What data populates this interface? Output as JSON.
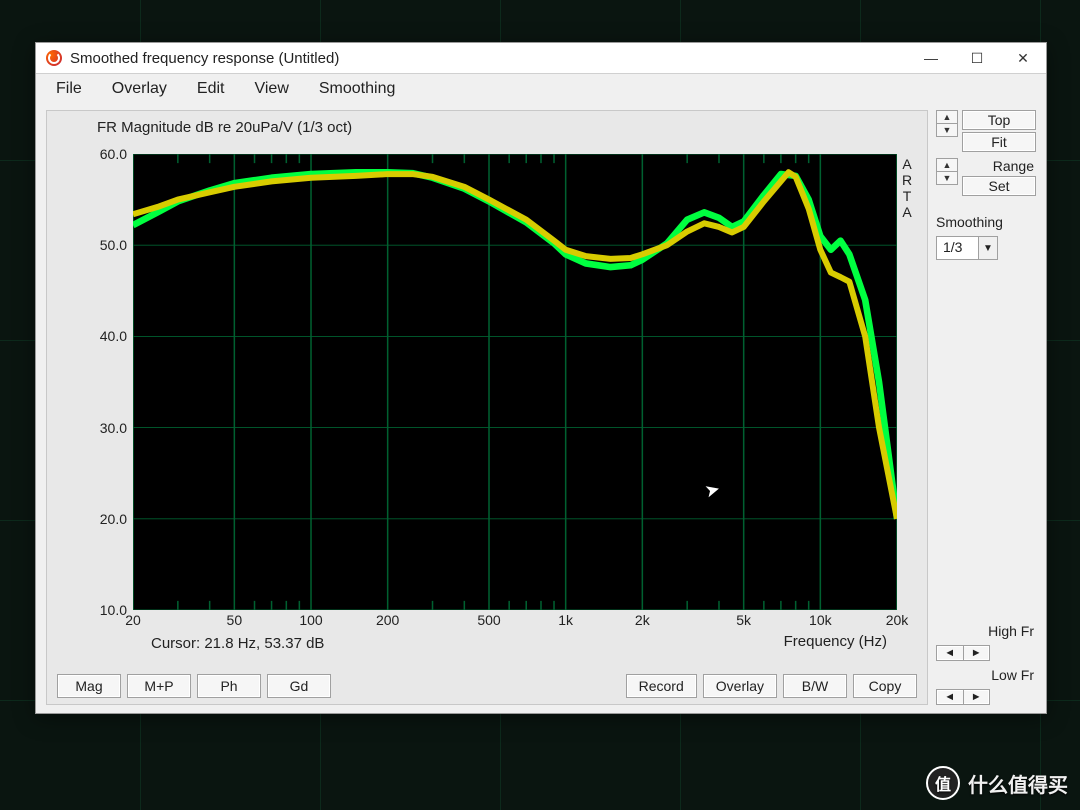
{
  "window": {
    "title": "Smoothed frequency response (Untitled)"
  },
  "menu": [
    "File",
    "Overlay",
    "Edit",
    "View",
    "Smoothing"
  ],
  "chart": {
    "title": "FR Magnitude dB re 20uPa/V (1/3 oct)",
    "xlabel": "Frequency (Hz)",
    "arta_label": "ARTA",
    "background_color": "#000000",
    "grid_color": "#006030",
    "ylim": [
      10,
      60
    ],
    "yticks": [
      10.0,
      20.0,
      30.0,
      40.0,
      50.0,
      60.0
    ],
    "ytick_labels": [
      "10.0",
      "20.0",
      "30.0",
      "40.0",
      "50.0",
      "60.0"
    ],
    "x_scale": "log",
    "xlim": [
      20,
      20000
    ],
    "xticks": [
      20,
      50,
      100,
      200,
      500,
      1000,
      2000,
      5000,
      10000,
      20000
    ],
    "xtick_labels": [
      "20",
      "50",
      "100",
      "200",
      "500",
      "1k",
      "2k",
      "5k",
      "10k",
      "20k"
    ],
    "minor_xticks": [
      30,
      40,
      60,
      70,
      80,
      90,
      300,
      400,
      600,
      700,
      800,
      900,
      3000,
      4000,
      6000,
      7000,
      8000,
      9000
    ],
    "series": [
      {
        "name": "green",
        "color": "#00ff40",
        "width": 2.2,
        "points": [
          [
            20,
            52.2
          ],
          [
            25,
            53.6
          ],
          [
            30,
            54.8
          ],
          [
            40,
            56.0
          ],
          [
            50,
            56.8
          ],
          [
            70,
            57.4
          ],
          [
            100,
            57.8
          ],
          [
            150,
            58.0
          ],
          [
            200,
            58.0
          ],
          [
            250,
            57.9
          ],
          [
            300,
            57.4
          ],
          [
            400,
            56.2
          ],
          [
            500,
            54.8
          ],
          [
            700,
            52.5
          ],
          [
            900,
            50.2
          ],
          [
            1000,
            49.0
          ],
          [
            1200,
            48.0
          ],
          [
            1500,
            47.6
          ],
          [
            1800,
            47.8
          ],
          [
            2000,
            48.4
          ],
          [
            2500,
            50.2
          ],
          [
            3000,
            52.8
          ],
          [
            3500,
            53.6
          ],
          [
            4000,
            53.0
          ],
          [
            4500,
            52.0
          ],
          [
            5000,
            52.6
          ],
          [
            6000,
            55.5
          ],
          [
            7000,
            57.8
          ],
          [
            8000,
            57.6
          ],
          [
            9000,
            55.0
          ],
          [
            10000,
            51.0
          ],
          [
            11000,
            49.5
          ],
          [
            12000,
            50.5
          ],
          [
            13000,
            49.0
          ],
          [
            15000,
            44.0
          ],
          [
            17000,
            35.0
          ],
          [
            20000,
            20.0
          ]
        ]
      },
      {
        "name": "yellow",
        "color": "#d8cc00",
        "width": 2.0,
        "points": [
          [
            20,
            53.4
          ],
          [
            25,
            54.2
          ],
          [
            30,
            55.0
          ],
          [
            40,
            55.8
          ],
          [
            50,
            56.4
          ],
          [
            70,
            57.0
          ],
          [
            100,
            57.4
          ],
          [
            150,
            57.6
          ],
          [
            200,
            57.8
          ],
          [
            250,
            57.8
          ],
          [
            300,
            57.5
          ],
          [
            400,
            56.4
          ],
          [
            500,
            55.0
          ],
          [
            700,
            52.8
          ],
          [
            900,
            50.5
          ],
          [
            1000,
            49.5
          ],
          [
            1200,
            48.8
          ],
          [
            1500,
            48.5
          ],
          [
            1800,
            48.6
          ],
          [
            2000,
            49.0
          ],
          [
            2500,
            50.0
          ],
          [
            3000,
            51.5
          ],
          [
            3500,
            52.4
          ],
          [
            4000,
            52.0
          ],
          [
            4500,
            51.4
          ],
          [
            5000,
            52.0
          ],
          [
            6000,
            54.8
          ],
          [
            7000,
            57.0
          ],
          [
            7500,
            58.0
          ],
          [
            8000,
            57.5
          ],
          [
            9000,
            54.0
          ],
          [
            10000,
            49.5
          ],
          [
            11000,
            47.0
          ],
          [
            12000,
            46.5
          ],
          [
            13000,
            46.0
          ],
          [
            15000,
            40.0
          ],
          [
            17000,
            30.0
          ],
          [
            20000,
            20.0
          ]
        ]
      }
    ],
    "cursor_text": "Cursor: 21.8 Hz, 53.37 dB"
  },
  "left_buttons": [
    "Mag",
    "M+P",
    "Ph",
    "Gd"
  ],
  "right_buttons": [
    "Record",
    "Overlay",
    "B/W",
    "Copy"
  ],
  "side": {
    "top_btn": "Top",
    "fit_btn": "Fit",
    "range_lbl": "Range",
    "set_btn": "Set",
    "smoothing_lbl": "Smoothing",
    "smoothing_val": "1/3",
    "highfr_lbl": "High Fr",
    "lowfr_lbl": "Low Fr"
  },
  "watermark": "什么值得买"
}
